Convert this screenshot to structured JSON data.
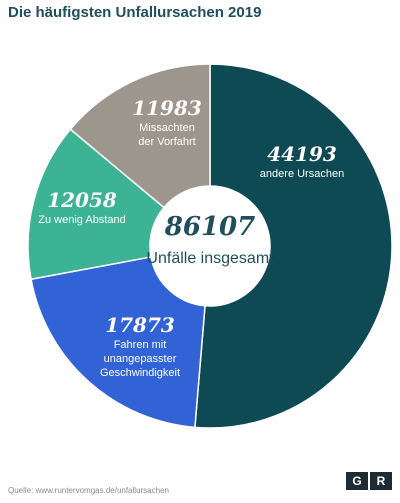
{
  "chart_data": {
    "type": "donut",
    "title": "Die häufigsten Unfallursachen 2019",
    "categories": [
      "andere Ursachen",
      "Fahren mit\nunangepasster\nGeschwindigkeit",
      "Zu wenig Abstand",
      "Missachten\nder Vorfahrt"
    ],
    "values": [
      44193,
      17873,
      12058,
      11983
    ],
    "colors": [
      "#0e4a53",
      "#3162d6",
      "#3bb394",
      "#9c968d"
    ],
    "center_value": 86107,
    "center_label": "Unfälle insgesamt",
    "source": "Quelle: www.runtervomgas.de/unfallursachen",
    "logo": [
      "G",
      "R"
    ]
  }
}
